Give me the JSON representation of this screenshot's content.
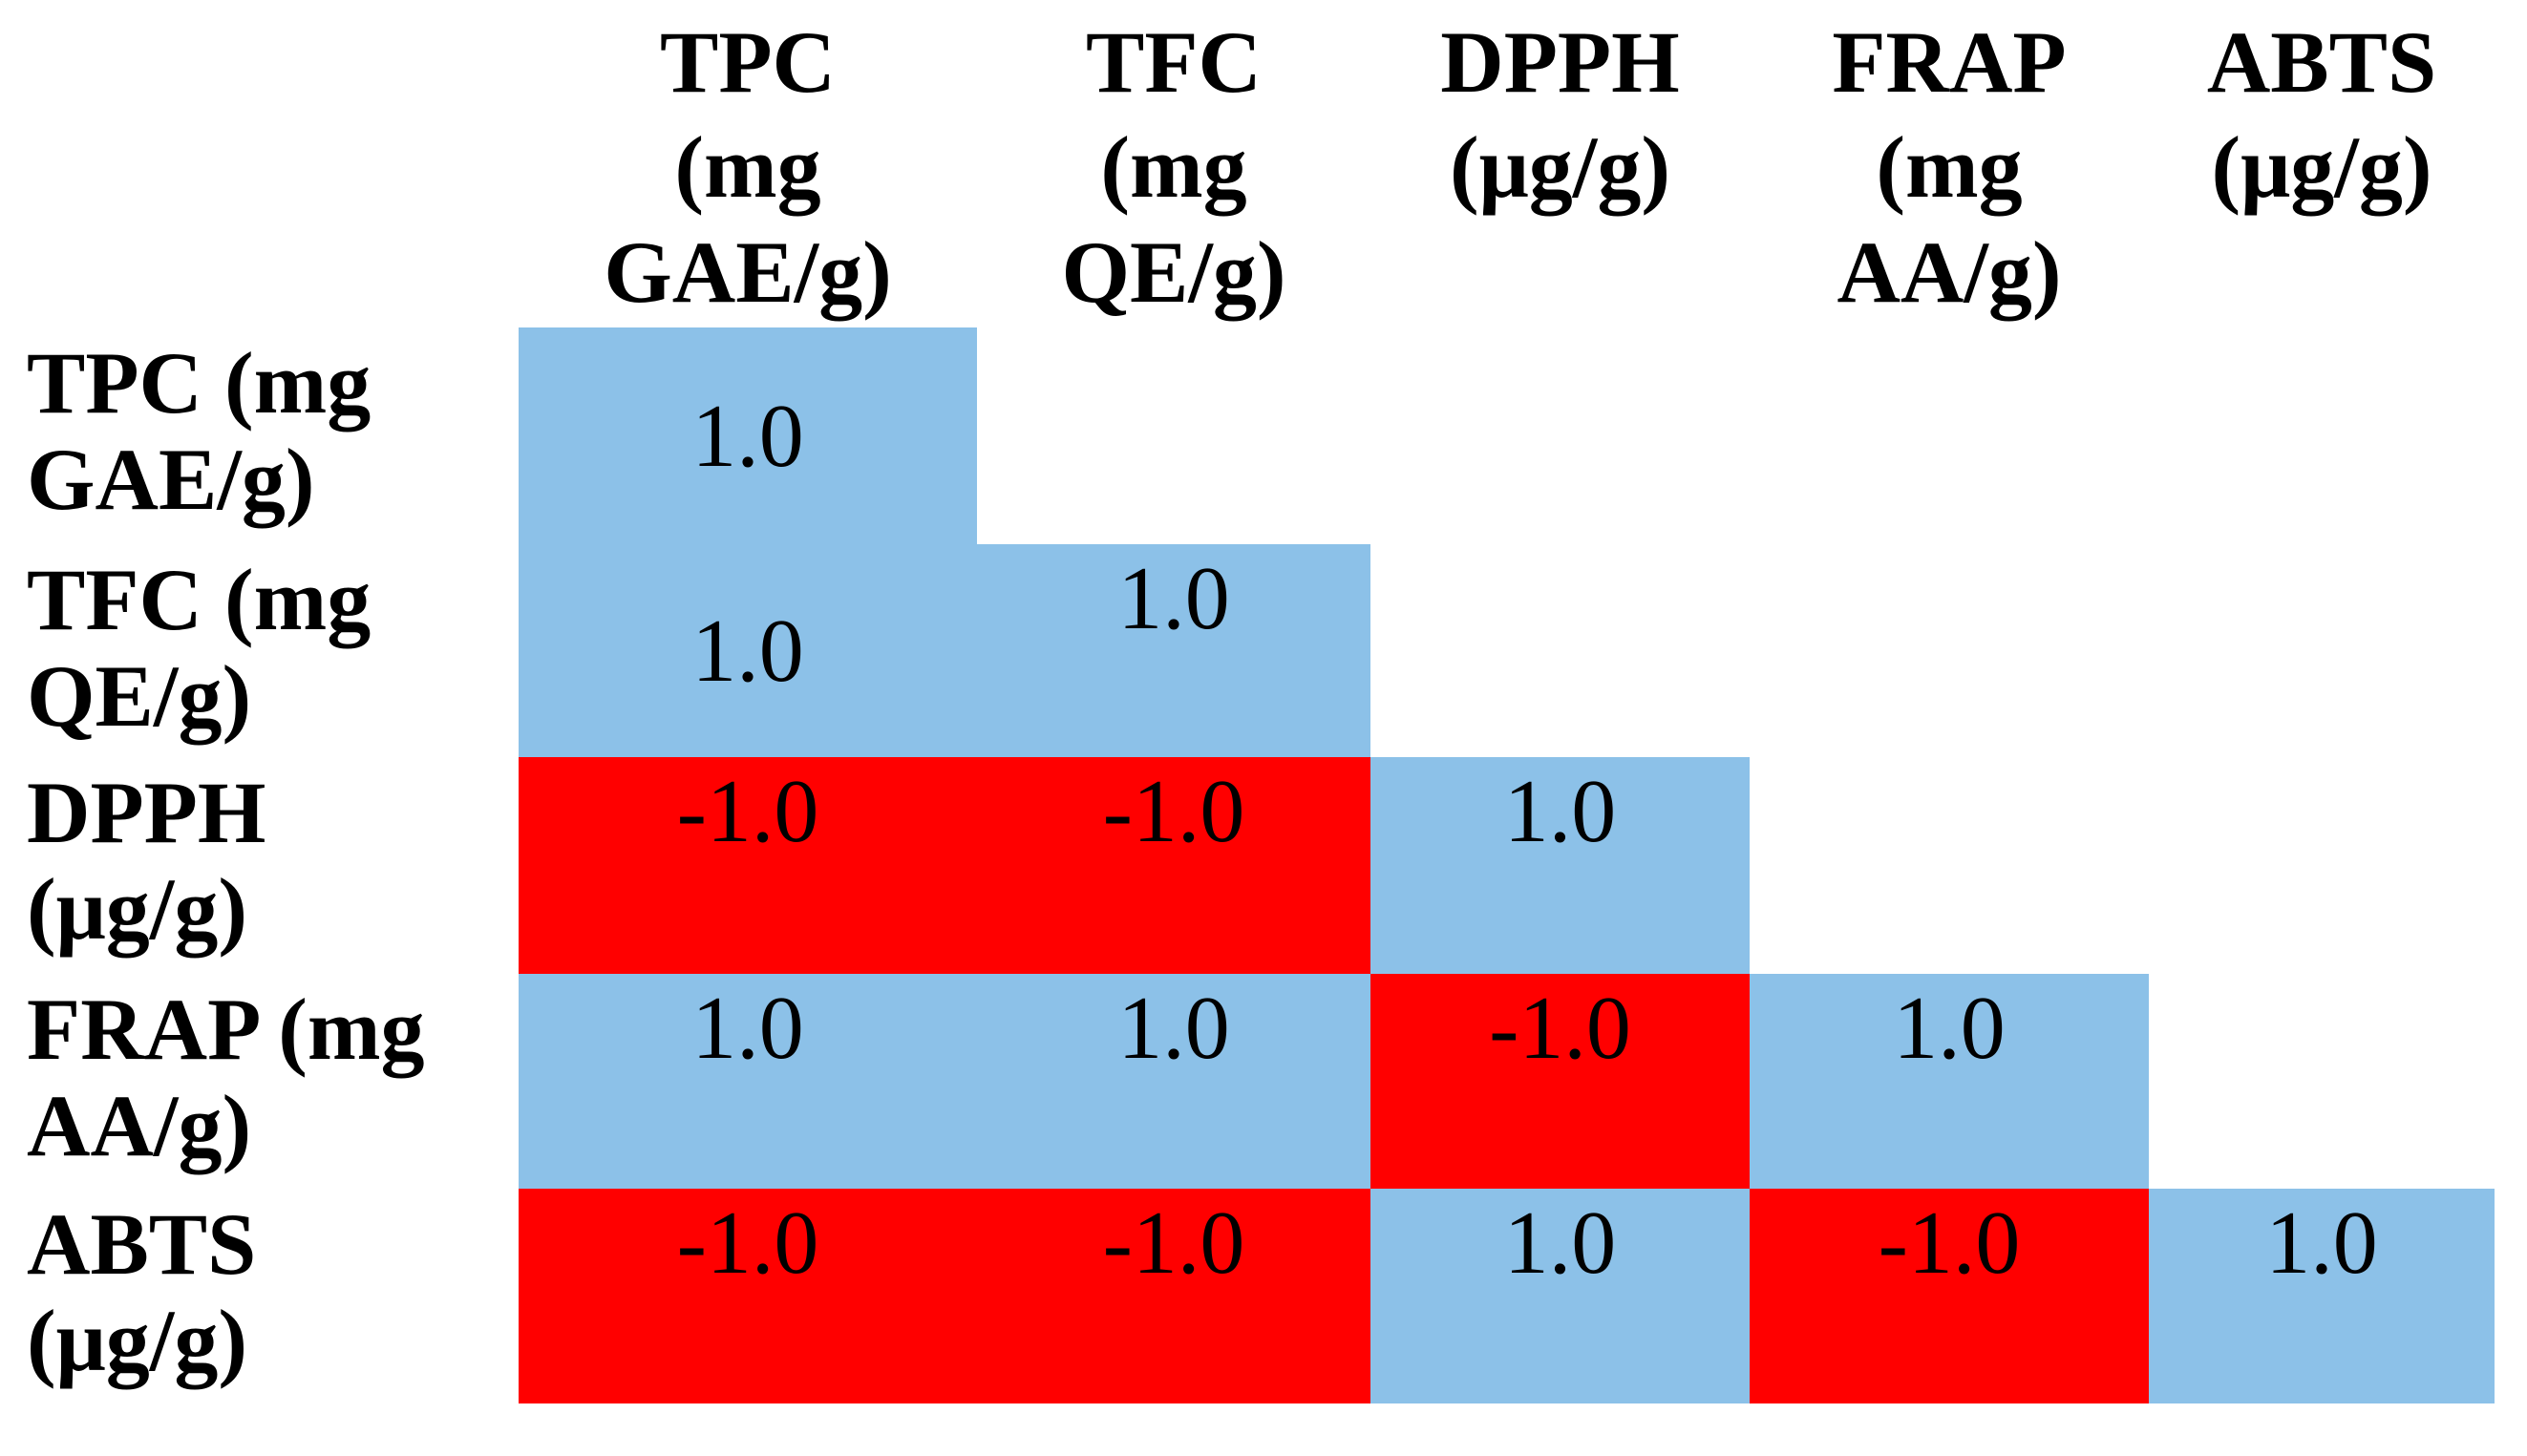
{
  "colors": {
    "positive_fill": "#8CC1E8",
    "negative_fill": "#FF0000",
    "text": "#000000",
    "background": "#FFFFFF"
  },
  "columns": [
    {
      "id": "tpc",
      "label": "TPC\n(mg\nGAE/g)"
    },
    {
      "id": "tfc",
      "label": "TFC\n(mg\nQE/g)"
    },
    {
      "id": "dpph",
      "label": "DPPH\n(μg/g)"
    },
    {
      "id": "frap",
      "label": "FRAP\n(mg\nAA/g)"
    },
    {
      "id": "abts",
      "label": "ABTS\n(μg/g)"
    }
  ],
  "rows": [
    {
      "id": "tpc",
      "label": "TPC (mg\nGAE/g)",
      "cells": [
        {
          "value": "1.0"
        }
      ]
    },
    {
      "id": "tfc",
      "label": "TFC (mg\nQE/g)",
      "cells": [
        {
          "value": "1.0"
        },
        {
          "value": "1.0"
        }
      ]
    },
    {
      "id": "dpph",
      "label": "DPPH\n(μg/g)",
      "cells": [
        {
          "value": "-1.0"
        },
        {
          "value": "-1.0"
        },
        {
          "value": "1.0"
        }
      ]
    },
    {
      "id": "frap",
      "label": "FRAP (mg\nAA/g)",
      "cells": [
        {
          "value": "1.0"
        },
        {
          "value": "1.0"
        },
        {
          "value": "-1.0"
        },
        {
          "value": "1.0"
        }
      ]
    },
    {
      "id": "abts",
      "label": "ABTS\n(μg/g)",
      "cells": [
        {
          "value": "-1.0"
        },
        {
          "value": "-1.0"
        },
        {
          "value": "1.0"
        },
        {
          "value": "-1.0"
        },
        {
          "value": "1.0"
        }
      ]
    }
  ],
  "chart_data": {
    "type": "heatmap",
    "subtype": "lower-triangular correlation matrix",
    "variables": [
      "TPC (mg GAE/g)",
      "TFC (mg QE/g)",
      "DPPH (μg/g)",
      "FRAP (mg AA/g)",
      "ABTS (μg/g)"
    ],
    "lower_triangle_values": [
      [
        1.0
      ],
      [
        1.0,
        1.0
      ],
      [
        -1.0,
        -1.0,
        1.0
      ],
      [
        1.0,
        1.0,
        -1.0,
        1.0
      ],
      [
        -1.0,
        -1.0,
        1.0,
        -1.0,
        1.0
      ]
    ],
    "value_range": [
      -1.0,
      1.0
    ],
    "value_format": "one decimal place",
    "color_rule": "positive correlation = light blue #8CC1E8, negative correlation = red #FF0000",
    "grid": false,
    "legend": false,
    "title": ""
  }
}
